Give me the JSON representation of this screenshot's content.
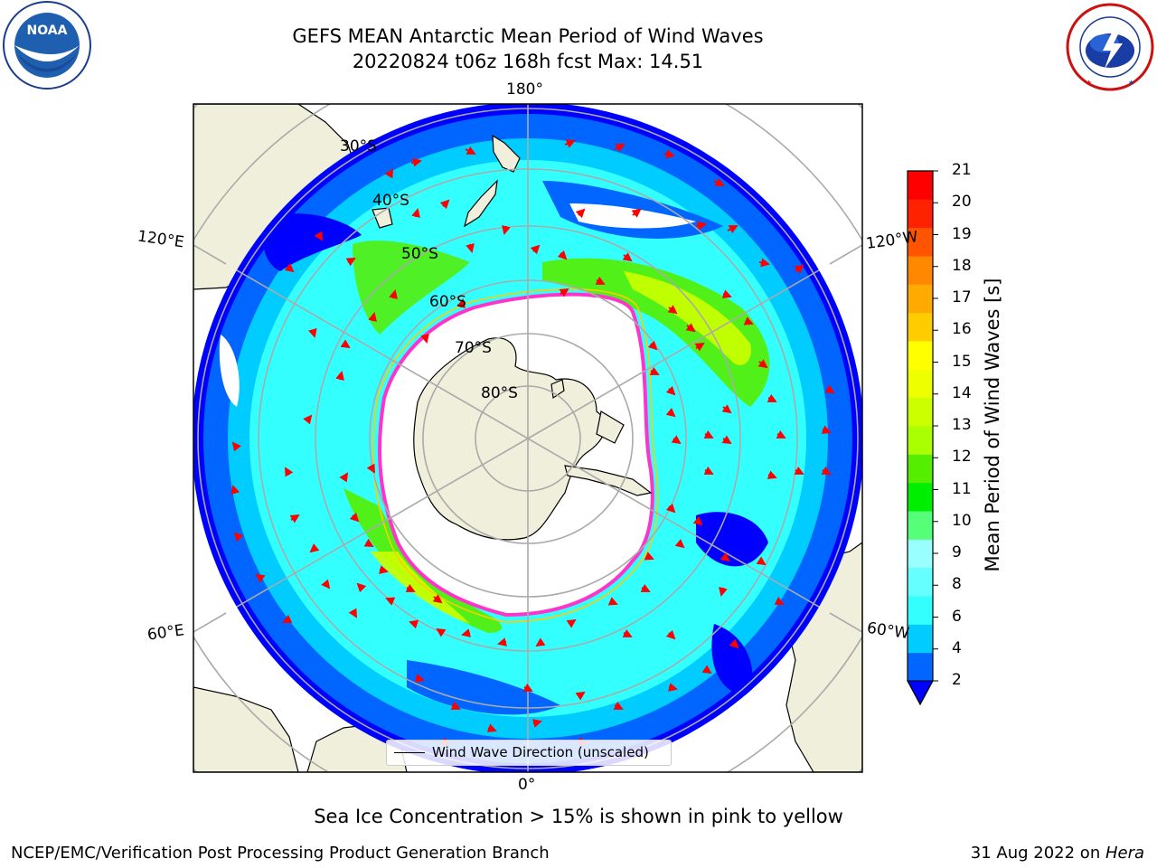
{
  "header": {
    "title_line1": "GEFS MEAN Antarctic Mean Period of Wind Waves",
    "title_line2": "20220824 t06z 168h fcst   Max: 14.51"
  },
  "logos": {
    "left": "noaa-logo",
    "left_text": "NOAA",
    "left_ring_text": "NATIONAL OCEANIC AND ATMOSPHERIC ADMINISTRATION U.S. DEPARTMENT OF COMMERCE",
    "right": "nws-logo",
    "right_ring_text": "NATIONAL WEATHER SERVICE"
  },
  "map": {
    "projection": "south-polar-stereographic",
    "lon_labels": {
      "top": "180°",
      "left_upper": "120°E",
      "right_upper": "120°W",
      "left_lower": "60°E",
      "right_lower": "60°W",
      "bottom": "0°"
    },
    "lat_labels": [
      "30°S",
      "40°S",
      "50°S",
      "60°S",
      "70°S",
      "80°S"
    ],
    "legend_label": "Wind Wave Direction (unscaled)",
    "arrow_color": "#ff0000",
    "sea_ice_edge_colors": [
      "#ff33cc",
      "#ffcc00"
    ]
  },
  "colorbar": {
    "title": "Mean Period of Wind Waves [s]",
    "ticks": [
      "2",
      "4",
      "6",
      "8",
      "9",
      "10",
      "11",
      "12",
      "13",
      "14",
      "15",
      "16",
      "17",
      "18",
      "19",
      "20",
      "21"
    ],
    "colors": [
      "#0066ff",
      "#00ccff",
      "#33ffff",
      "#66ffff",
      "#99ffff",
      "#55ff77",
      "#00ee00",
      "#55ee00",
      "#aaff00",
      "#ccff00",
      "#eeff00",
      "#ffff00",
      "#ffcc00",
      "#ffaa00",
      "#ff8800",
      "#ff5500",
      "#ff2200",
      "#ff0000"
    ],
    "under_color": "#0000ff"
  },
  "footer": {
    "subtitle": "Sea Ice Concentration > 15% is shown in pink to yellow",
    "left": "NCEP/EMC/Verification Post Processing Product Generation Branch",
    "right_date": "31 Aug 2022 on ",
    "right_machine": "Hera"
  }
}
